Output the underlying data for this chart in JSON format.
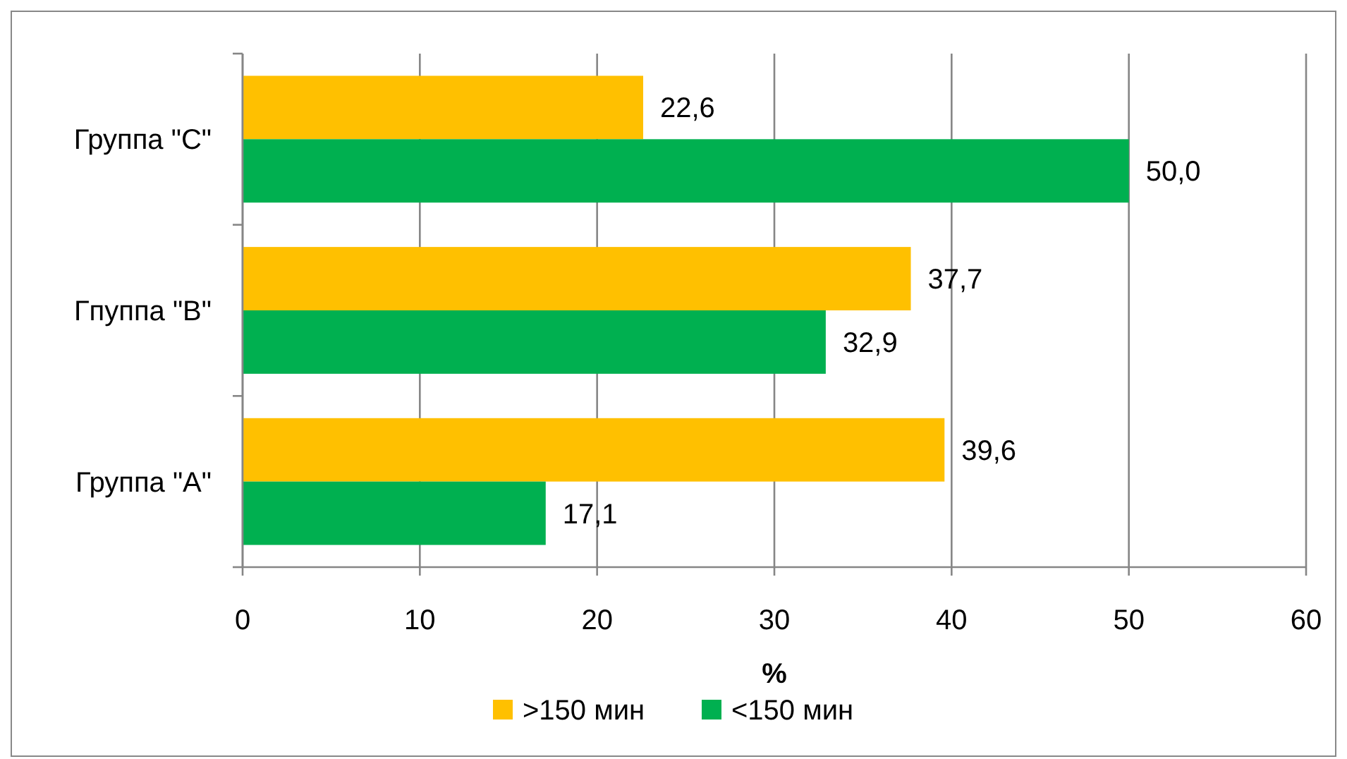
{
  "chart_data": {
    "type": "bar",
    "orientation": "horizontal",
    "categories": [
      "Группа \"C\"",
      "Гпуппа \"B\"",
      "Группа \"A\""
    ],
    "series": [
      {
        "name": ">150 мин",
        "color": "#ffc000",
        "values": [
          22.6,
          37.7,
          39.6
        ],
        "value_labels": [
          "22,6",
          "37,7",
          "39,6"
        ]
      },
      {
        "name": "<150 мин",
        "color": "#00b050",
        "values": [
          50.0,
          32.9,
          17.1
        ],
        "value_labels": [
          "50,0",
          "32,9",
          "17,1"
        ]
      }
    ],
    "xlim": [
      0,
      60
    ],
    "xticks": [
      0,
      10,
      20,
      30,
      40,
      50,
      60
    ],
    "xlabel": "%",
    "grid": "x",
    "legend": "bottom"
  }
}
